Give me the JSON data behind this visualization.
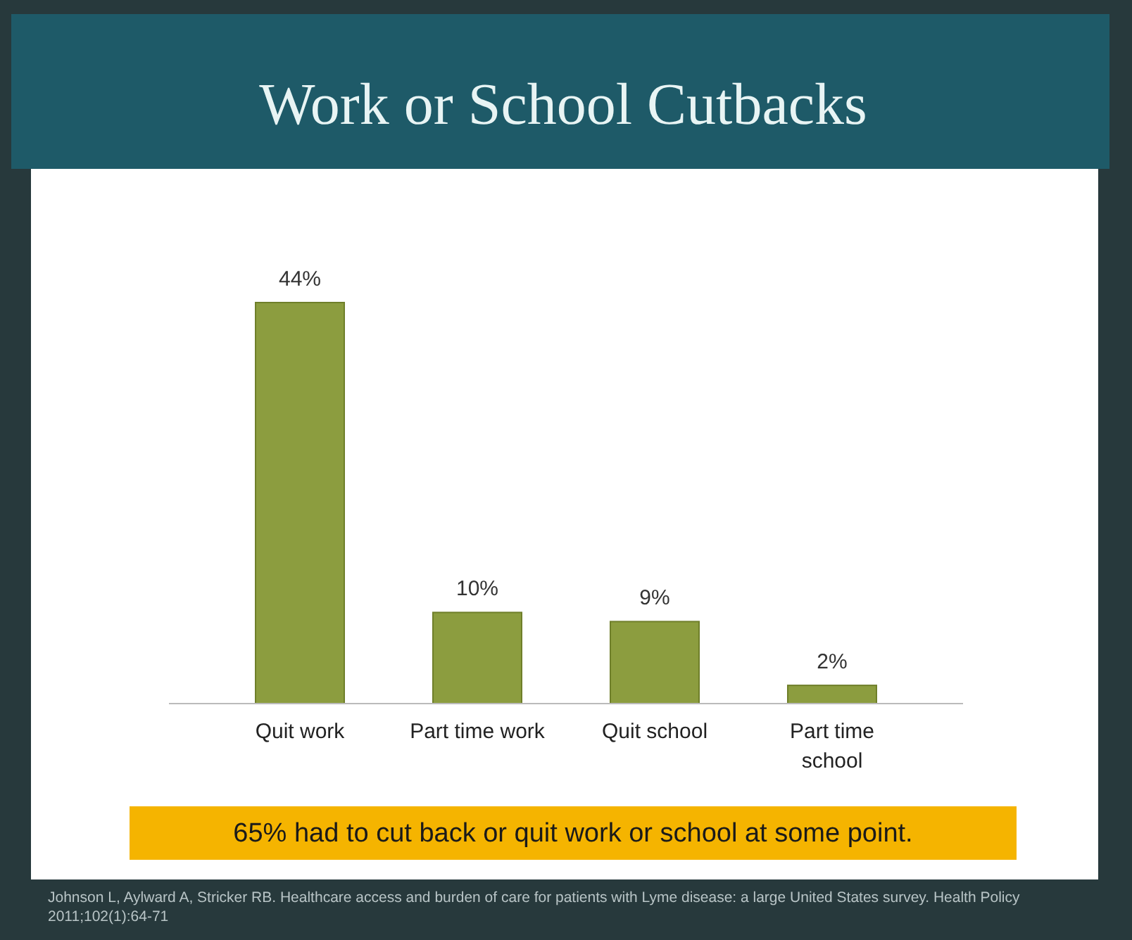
{
  "chart_data": {
    "type": "bar",
    "title": "Work or School Cutbacks",
    "categories": [
      "Quit work",
      "Part time work",
      "Quit school",
      "Part time school"
    ],
    "values": [
      44,
      10,
      9,
      2
    ],
    "color": "#8c9d3f",
    "data_labels": true,
    "tick_labels": "x",
    "grid": false,
    "value_labels": [
      "44%",
      "10%",
      "9%",
      "2%"
    ],
    "annotations": [
      "65% had to cut back or quit work or school at some point.",
      "Johnson L, Aylward A, Stricker RB. Healthcare access and burden of care for patients with Lyme disease: a large United States survey. Health Policy 2011;102(1):64-71"
    ]
  }
}
